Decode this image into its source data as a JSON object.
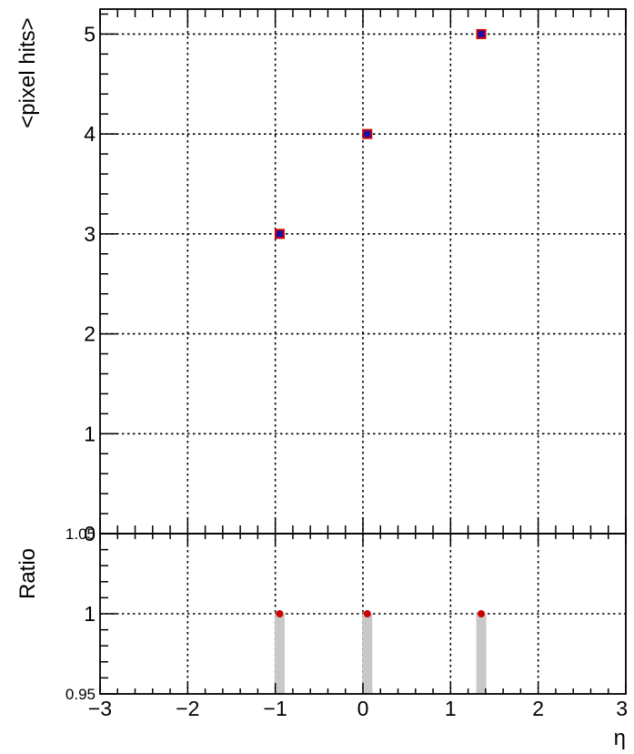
{
  "chart_data": [
    {
      "panel": "main",
      "type": "scatter",
      "title": "",
      "xlabel": "",
      "ylabel": "<pixel hits>",
      "xlim": [
        -3,
        3
      ],
      "ylim": [
        0,
        5.25
      ],
      "grid": true,
      "xticks": [
        -3,
        -2,
        -1,
        0,
        1,
        2,
        3
      ],
      "yticks": [
        "0",
        "1",
        "2",
        "3",
        "4",
        "5"
      ],
      "marker_fill": "#1a0dab",
      "marker_edge": "#cc0000",
      "series": [
        {
          "x": [
            -0.95,
            0.05,
            1.35
          ],
          "y": [
            3,
            4,
            5
          ]
        }
      ]
    },
    {
      "panel": "ratio",
      "type": "scatter",
      "xlabel": "η",
      "ylabel": "Ratio",
      "xlim": [
        -3,
        3
      ],
      "ylim": [
        0.95,
        1.05
      ],
      "grid": true,
      "xticks": [
        "−3",
        "−2",
        "−1",
        "0",
        "1",
        "2",
        "3"
      ],
      "yticks": [
        {
          "value": 0.95,
          "label": "0.95"
        },
        {
          "value": 1.0,
          "label": "1"
        },
        {
          "value": 1.05,
          "label": "1.05"
        }
      ],
      "band_color": "#c8c8c8",
      "marker_color": "#cc0000",
      "series": [
        {
          "x": [
            -0.95,
            0.05,
            1.35
          ],
          "y": [
            1,
            1,
            1
          ],
          "band_low": [
            0.95,
            0.95,
            0.95
          ],
          "band_high": [
            1,
            1,
            1
          ]
        }
      ]
    }
  ]
}
